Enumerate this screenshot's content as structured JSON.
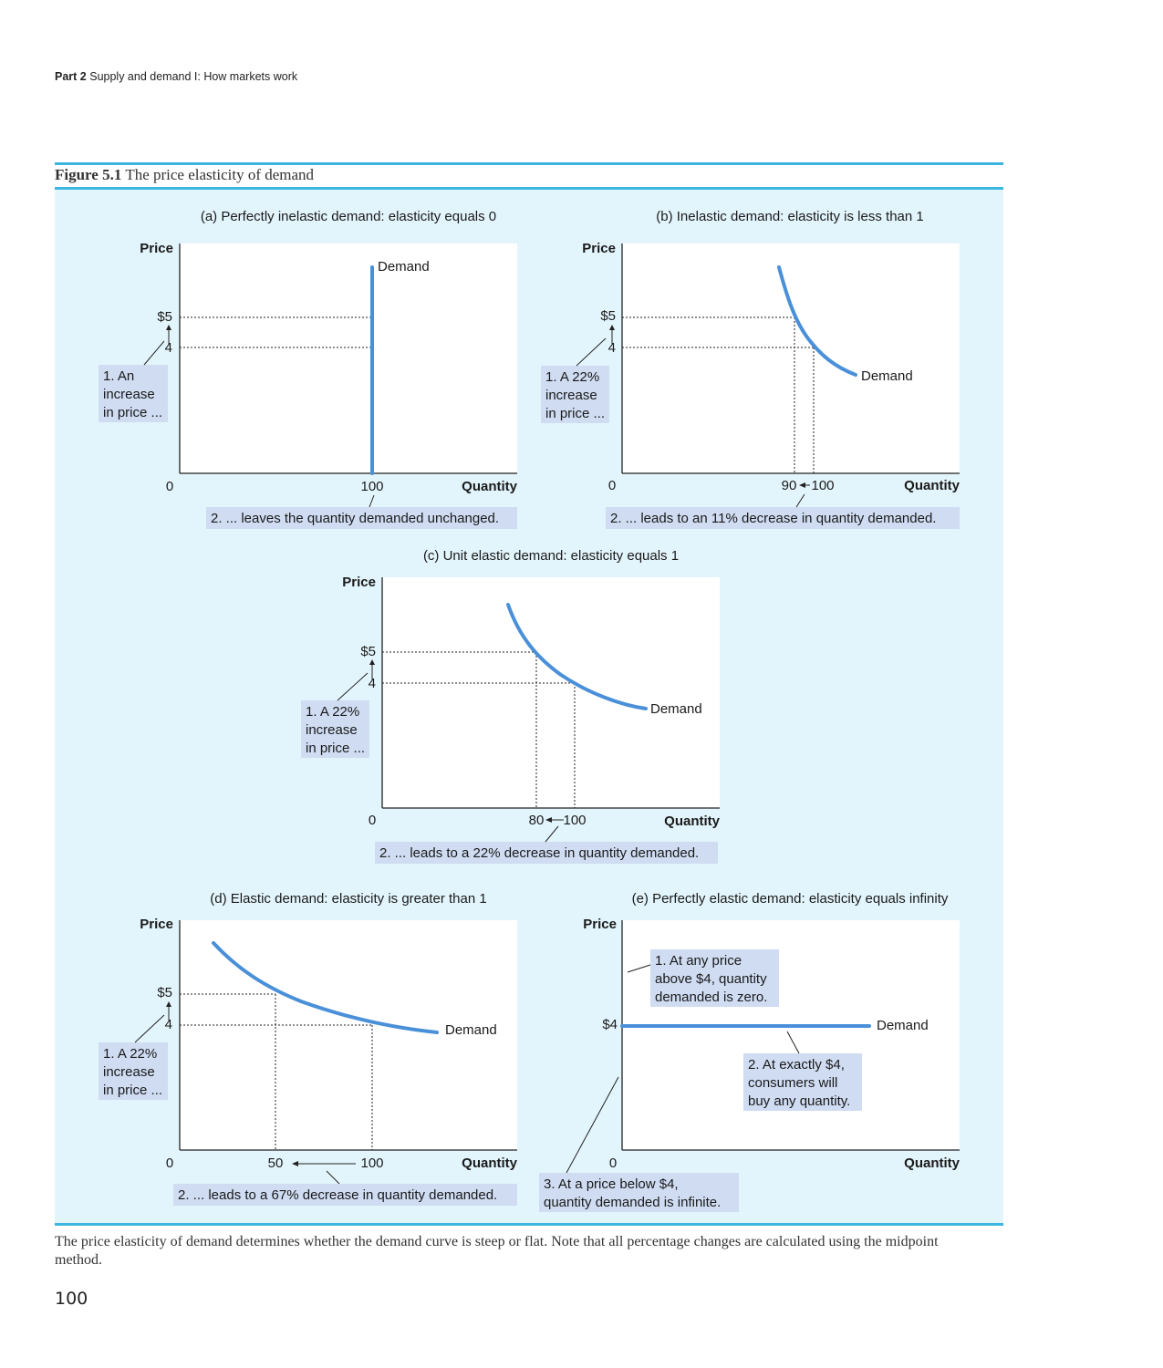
{
  "header": {
    "part": "Part 2",
    "title": "Supply and demand I: How markets work"
  },
  "figure": {
    "label": "Figure 5.1",
    "title": "The price elasticity of demand"
  },
  "caption": "The price elasticity of demand determines whether the demand curve is steep or flat. Note that all percentage changes are calculated using the midpoint method.",
  "page_number": "100",
  "colors": {
    "rule": "#3cb6df",
    "panel_bg": "#e3f5fc",
    "curve": "#4a90d9",
    "callout_bg": "#cfdcf2"
  },
  "panels": {
    "a": {
      "title": "(a) Perfectly inelastic demand: elasticity equals 0",
      "ylabel": "Price",
      "xlabel": "Quantity",
      "origin": "0",
      "yticks": [
        "$5",
        "4"
      ],
      "xticks": [
        "100"
      ],
      "curve_label": "Demand",
      "callout_price": [
        "1. An",
        "increase",
        "in price ..."
      ],
      "callout_qty": "2. ... leaves the quantity demanded unchanged."
    },
    "b": {
      "title": "(b) Inelastic demand: elasticity is less than 1",
      "ylabel": "Price",
      "xlabel": "Quantity",
      "origin": "0",
      "yticks": [
        "$5",
        "4"
      ],
      "xticks": [
        "90",
        "100"
      ],
      "curve_label": "Demand",
      "callout_price": [
        "1. A 22%",
        "increase",
        "in price ..."
      ],
      "callout_qty": "2. ... leads to an 11% decrease in quantity demanded."
    },
    "c": {
      "title": "(c) Unit elastic demand: elasticity equals 1",
      "ylabel": "Price",
      "xlabel": "Quantity",
      "origin": "0",
      "yticks": [
        "$5",
        "4"
      ],
      "xticks": [
        "80",
        "100"
      ],
      "curve_label": "Demand",
      "callout_price": [
        "1. A 22%",
        "increase",
        "in price ..."
      ],
      "callout_qty": "2. ... leads to a 22% decrease in quantity demanded."
    },
    "d": {
      "title": "(d) Elastic demand: elasticity is greater than 1",
      "ylabel": "Price",
      "xlabel": "Quantity",
      "origin": "0",
      "yticks": [
        "$5",
        "4"
      ],
      "xticks": [
        "50",
        "100"
      ],
      "curve_label": "Demand",
      "callout_price": [
        "1. A 22%",
        "increase",
        "in price ..."
      ],
      "callout_qty": "2. ... leads to a 67% decrease in quantity demanded."
    },
    "e": {
      "title": "(e) Perfectly elastic demand: elasticity equals infinity",
      "ylabel": "Price",
      "xlabel": "Quantity",
      "origin": "0",
      "yticks": [
        "$4"
      ],
      "curve_label": "Demand",
      "callout_above": [
        "1. At any price",
        "above $4, quantity",
        "demanded is zero."
      ],
      "callout_at": [
        "2. At exactly $4,",
        "consumers will",
        "buy any quantity."
      ],
      "callout_below": [
        "3. At a price below $4,",
        "quantity demanded is infinite."
      ]
    }
  }
}
